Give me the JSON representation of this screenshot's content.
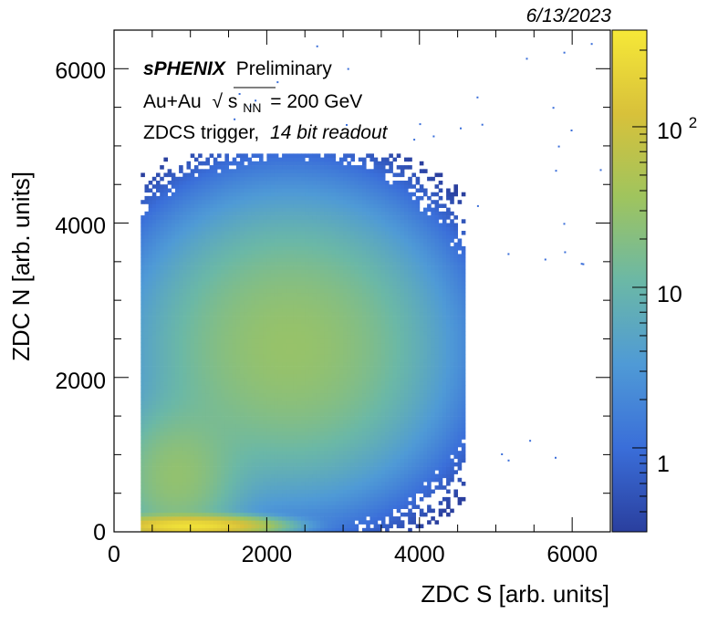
{
  "date_stamp": "6/13/2023",
  "annotations": {
    "experiment": "sPHENIX",
    "status": "Preliminary",
    "system_prefix": "Au+Au",
    "sqrt_symbol": "√",
    "energy_var": "s",
    "energy_sub": "NN",
    "energy_value": "= 200 GeV",
    "trigger": "ZDCS trigger,",
    "readout": "14 bit readout"
  },
  "colorbar": {
    "labels": [
      {
        "text": "1",
        "value": 1
      },
      {
        "text": "10",
        "value": 10
      },
      {
        "text": "10",
        "sup": "2",
        "value": 100
      }
    ],
    "scale": "log",
    "range": [
      0.3,
      400
    ],
    "colors": [
      "#2a3f9e",
      "#3a6ed9",
      "#4f9ad6",
      "#6bb8a6",
      "#9fc45e",
      "#d8c13a",
      "#f6e838"
    ]
  },
  "chart_data": {
    "type": "heatmap",
    "title": "",
    "xlabel": "ZDC S [arb. units]",
    "ylabel": "ZDC N [arb. units]",
    "xlim": [
      0,
      6500
    ],
    "ylim": [
      0,
      6500
    ],
    "xticks": [
      0,
      2000,
      4000,
      6000
    ],
    "yticks": [
      0,
      2000,
      4000,
      6000
    ],
    "xtick_labels": [
      "0",
      "2000",
      "4000",
      "6000"
    ],
    "ytick_labels": [
      "0",
      "2000",
      "4000",
      "6000"
    ],
    "z_scale": "log",
    "z_range": [
      0.3,
      400
    ],
    "density_components": [
      {
        "name": "main_blob",
        "center": [
          2300,
          2400
        ],
        "sigma": [
          1000,
          950
        ],
        "peak": 30
      },
      {
        "name": "low_band",
        "center": [
          1000,
          80
        ],
        "sigma": [
          500,
          60
        ],
        "peak": 300
      },
      {
        "name": "diagonal_low",
        "center": [
          800,
          700
        ],
        "sigma": [
          450,
          500
        ],
        "peak": 25
      }
    ],
    "region_bounds": {
      "x_min": 350,
      "x_max": 4600,
      "y_min": 0,
      "y_max": 4900
    },
    "grid": false
  }
}
